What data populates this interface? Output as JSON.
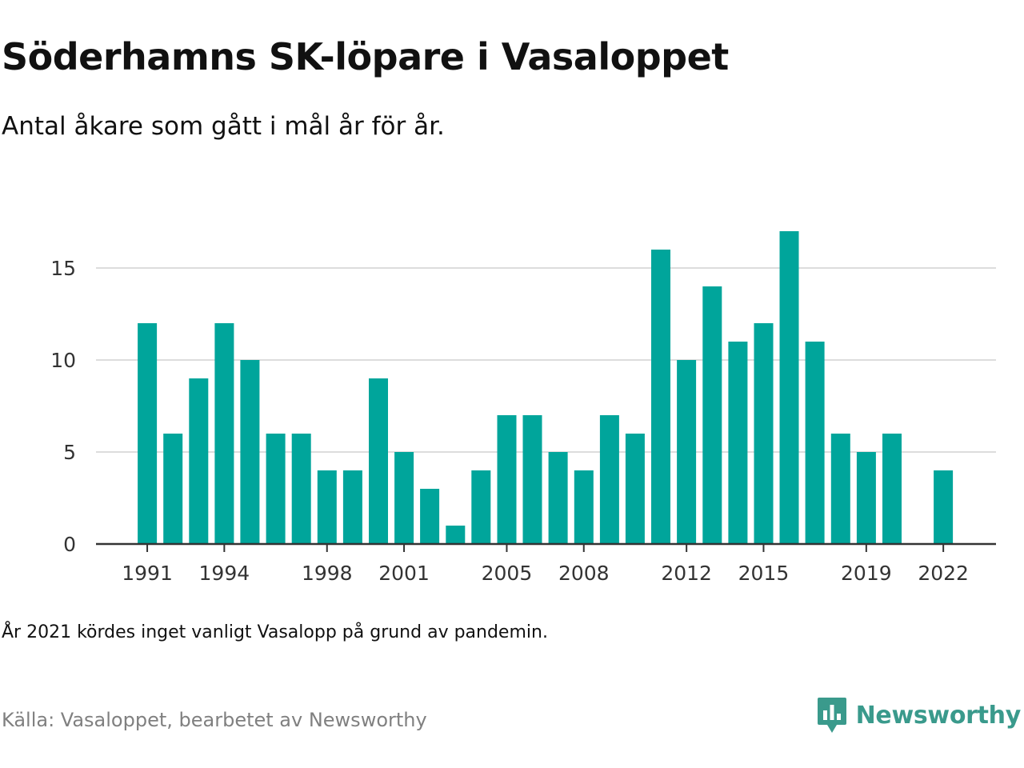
{
  "title": "Söderhamns SK-löpare i Vasaloppet",
  "subtitle": "Antal åkare som gått i mål år för år.",
  "note": "År 2021 kördes inget vanligt Vasalopp på grund av pandemin.",
  "source": "Källa: Vasaloppet, bearbetet av Newsworthy",
  "brand": {
    "name": "Newsworthy",
    "icon": "newsworthy-logo-icon",
    "color": "#3a9a8c"
  },
  "colors": {
    "bar": "#00a59b",
    "grid": "#dddddd",
    "axis": "#333333"
  },
  "chart_data": {
    "type": "bar",
    "categories": [
      "1991",
      "1992",
      "1993",
      "1994",
      "1995",
      "1996",
      "1997",
      "1998",
      "1999",
      "2000",
      "2001",
      "2002",
      "2003",
      "2004",
      "2005",
      "2006",
      "2007",
      "2008",
      "2009",
      "2010",
      "2011",
      "2012",
      "2013",
      "2014",
      "2015",
      "2016",
      "2017",
      "2018",
      "2019",
      "2020",
      "2021",
      "2022"
    ],
    "values": [
      12,
      6,
      9,
      12,
      10,
      6,
      6,
      4,
      4,
      9,
      5,
      3,
      1,
      4,
      7,
      7,
      5,
      4,
      7,
      6,
      16,
      10,
      14,
      11,
      12,
      17,
      11,
      6,
      5,
      6,
      null,
      4
    ],
    "x_tick_labels": [
      "1991",
      "1994",
      "1998",
      "2001",
      "2005",
      "2008",
      "2012",
      "2015",
      "2019",
      "2022"
    ],
    "y_ticks": [
      0,
      5,
      10,
      15
    ],
    "ylim": [
      0,
      18
    ],
    "grid": true,
    "xlabel": "",
    "ylabel": ""
  }
}
